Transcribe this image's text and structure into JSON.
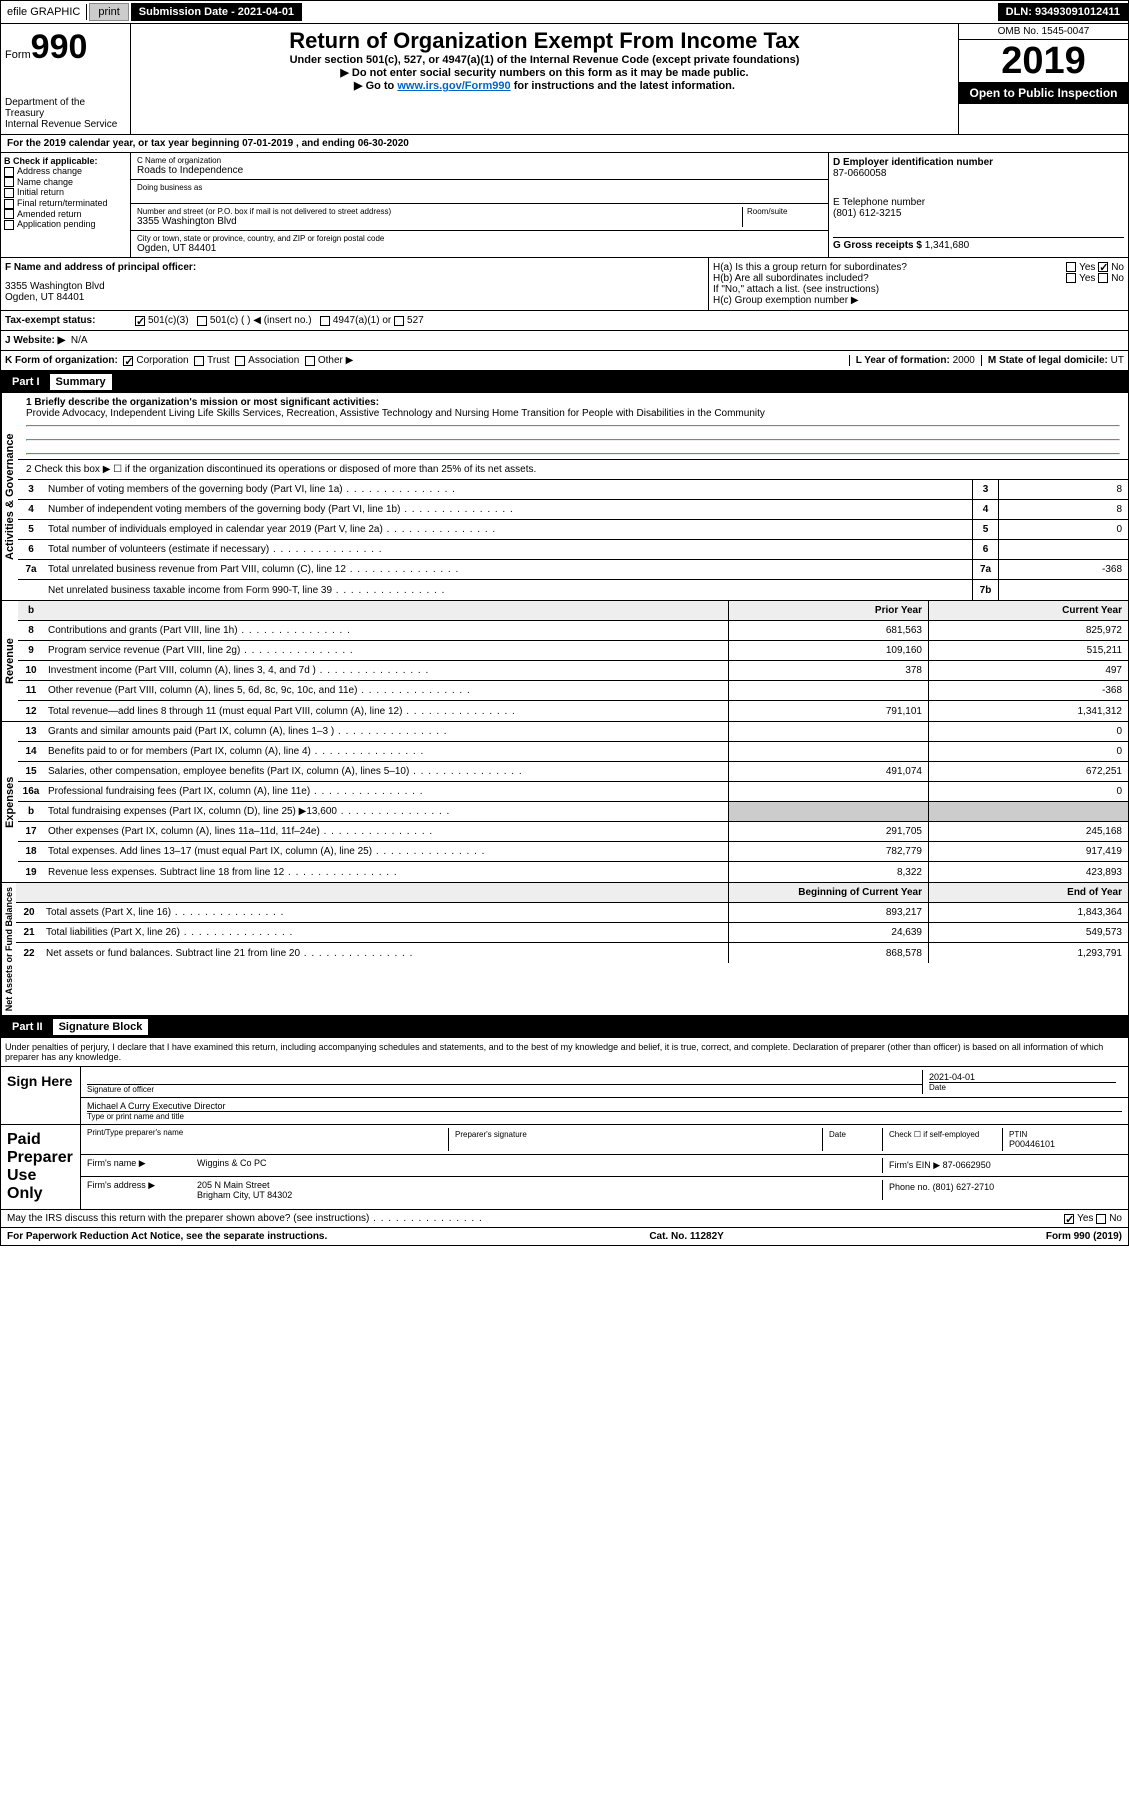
{
  "topbar": {
    "efile": "efile GRAPHIC",
    "print": "print",
    "sub_label": "Submission Date - 2021-04-01",
    "dln": "DLN: 93493091012411"
  },
  "header": {
    "form": "Form",
    "num": "990",
    "dept": "Department of the Treasury\nInternal Revenue Service",
    "title": "Return of Organization Exempt From Income Tax",
    "subtitle": "Under section 501(c), 527, or 4947(a)(1) of the Internal Revenue Code (except private foundations)",
    "note1": "▶ Do not enter social security numbers on this form as it may be made public.",
    "note2_pre": "▶ Go to ",
    "note2_link": "www.irs.gov/Form990",
    "note2_post": " for instructions and the latest information.",
    "omb": "OMB No. 1545-0047",
    "year": "2019",
    "open": "Open to Public Inspection"
  },
  "sectionA": "For the 2019 calendar year, or tax year beginning 07-01-2019    , and ending 06-30-2020",
  "sectionB": {
    "label": "B Check if applicable:",
    "items": [
      "Address change",
      "Name change",
      "Initial return",
      "Final return/terminated",
      "Amended return",
      "Application pending"
    ]
  },
  "sectionC": {
    "name_label": "C Name of organization",
    "name": "Roads to Independence",
    "dba_label": "Doing business as",
    "addr_label": "Number and street (or P.O. box if mail is not delivered to street address)",
    "room_label": "Room/suite",
    "addr": "3355 Washington Blvd",
    "city_label": "City or town, state or province, country, and ZIP or foreign postal code",
    "city": "Ogden, UT  84401"
  },
  "sectionD": {
    "label": "D Employer identification number",
    "value": "87-0660058"
  },
  "sectionE": {
    "label": "E Telephone number",
    "value": "(801) 612-3215"
  },
  "sectionG": {
    "label": "G Gross receipts $",
    "value": "1,341,680"
  },
  "sectionF": {
    "label": "F  Name and address of principal officer:",
    "addr1": "3355 Washington Blvd",
    "addr2": "Ogden, UT  84401"
  },
  "sectionH": {
    "ha": "H(a)  Is this a group return for subordinates?",
    "hb": "H(b)  Are all subordinates included?",
    "hb_note": "If \"No,\" attach a list. (see instructions)",
    "hc": "H(c)  Group exemption number ▶"
  },
  "taxI": {
    "label": "Tax-exempt status:",
    "c3": "501(c)(3)",
    "c": "501(c) (  ) ◀ (insert no.)",
    "a1": "4947(a)(1) or",
    "s527": "527"
  },
  "taxJ": {
    "label": "J   Website: ▶",
    "value": "N/A"
  },
  "taxK": {
    "label": "K Form of organization:",
    "corp": "Corporation",
    "trust": "Trust",
    "assoc": "Association",
    "other": "Other ▶"
  },
  "taxL": {
    "label": "L Year of formation:",
    "value": "2000"
  },
  "taxM": {
    "label": "M State of legal domicile:",
    "value": "UT"
  },
  "part1": {
    "num": "Part I",
    "title": "Summary"
  },
  "mission_label": "1  Briefly describe the organization's mission or most significant activities:",
  "mission": "Provide Advocacy, Independent Living Life Skills Services, Recreation, Assistive Technology and Nursing Home Transition for People with Disabilities in the Community",
  "line2": "2    Check this box ▶ ☐  if the organization discontinued its operations or disposed of more than 25% of its net assets.",
  "gov_side": "Activities & Governance",
  "rev_side": "Revenue",
  "exp_side": "Expenses",
  "net_side": "Net Assets or Fund Balances",
  "lines_gov": [
    {
      "n": "3",
      "d": "Number of voting members of the governing body (Part VI, line 1a)",
      "b": "3",
      "v": "8"
    },
    {
      "n": "4",
      "d": "Number of independent voting members of the governing body (Part VI, line 1b)",
      "b": "4",
      "v": "8"
    },
    {
      "n": "5",
      "d": "Total number of individuals employed in calendar year 2019 (Part V, line 2a)",
      "b": "5",
      "v": "0"
    },
    {
      "n": "6",
      "d": "Total number of volunteers (estimate if necessary)",
      "b": "6",
      "v": ""
    },
    {
      "n": "7a",
      "d": "Total unrelated business revenue from Part VIII, column (C), line 12",
      "b": "7a",
      "v": "-368"
    },
    {
      "n": "",
      "d": "Net unrelated business taxable income from Form 990-T, line 39",
      "b": "7b",
      "v": ""
    }
  ],
  "yearhdr": {
    "b": "b",
    "py": "Prior Year",
    "cy": "Current Year"
  },
  "lines_rev": [
    {
      "n": "8",
      "d": "Contributions and grants (Part VIII, line 1h)",
      "py": "681,563",
      "cy": "825,972"
    },
    {
      "n": "9",
      "d": "Program service revenue (Part VIII, line 2g)",
      "py": "109,160",
      "cy": "515,211"
    },
    {
      "n": "10",
      "d": "Investment income (Part VIII, column (A), lines 3, 4, and 7d )",
      "py": "378",
      "cy": "497"
    },
    {
      "n": "11",
      "d": "Other revenue (Part VIII, column (A), lines 5, 6d, 8c, 9c, 10c, and 11e)",
      "py": "",
      "cy": "-368"
    },
    {
      "n": "12",
      "d": "Total revenue—add lines 8 through 11 (must equal Part VIII, column (A), line 12)",
      "py": "791,101",
      "cy": "1,341,312"
    }
  ],
  "lines_exp": [
    {
      "n": "13",
      "d": "Grants and similar amounts paid (Part IX, column (A), lines 1–3 )",
      "py": "",
      "cy": "0"
    },
    {
      "n": "14",
      "d": "Benefits paid to or for members (Part IX, column (A), line 4)",
      "py": "",
      "cy": "0"
    },
    {
      "n": "15",
      "d": "Salaries, other compensation, employee benefits (Part IX, column (A), lines 5–10)",
      "py": "491,074",
      "cy": "672,251"
    },
    {
      "n": "16a",
      "d": "Professional fundraising fees (Part IX, column (A), line 11e)",
      "py": "",
      "cy": "0"
    },
    {
      "n": "b",
      "d": "Total fundraising expenses (Part IX, column (D), line 25) ▶13,600",
      "py": "shaded",
      "cy": "shaded"
    },
    {
      "n": "17",
      "d": "Other expenses (Part IX, column (A), lines 11a–11d, 11f–24e)",
      "py": "291,705",
      "cy": "245,168"
    },
    {
      "n": "18",
      "d": "Total expenses. Add lines 13–17 (must equal Part IX, column (A), line 25)",
      "py": "782,779",
      "cy": "917,419"
    },
    {
      "n": "19",
      "d": "Revenue less expenses. Subtract line 18 from line 12",
      "py": "8,322",
      "cy": "423,893"
    }
  ],
  "nethdr": {
    "py": "Beginning of Current Year",
    "cy": "End of Year"
  },
  "lines_net": [
    {
      "n": "20",
      "d": "Total assets (Part X, line 16)",
      "py": "893,217",
      "cy": "1,843,364"
    },
    {
      "n": "21",
      "d": "Total liabilities (Part X, line 26)",
      "py": "24,639",
      "cy": "549,573"
    },
    {
      "n": "22",
      "d": "Net assets or fund balances. Subtract line 21 from line 20",
      "py": "868,578",
      "cy": "1,293,791"
    }
  ],
  "part2": {
    "num": "Part II",
    "title": "Signature Block"
  },
  "perjury": "Under penalties of perjury, I declare that I have examined this return, including accompanying schedules and statements, and to the best of my knowledge and belief, it is true, correct, and complete. Declaration of preparer (other than officer) is based on all information of which preparer has any knowledge.",
  "sign": {
    "here": "Sign Here",
    "sig_label": "Signature of officer",
    "date": "2021-04-01",
    "date_label": "Date",
    "name": "Michael A Curry  Executive Director",
    "name_label": "Type or print name and title"
  },
  "paid": {
    "label": "Paid Preparer Use Only",
    "pn_label": "Print/Type preparer's name",
    "ps_label": "Preparer's signature",
    "d_label": "Date",
    "check_label": "Check ☐ if self-employed",
    "ptin_label": "PTIN",
    "ptin": "P00446101",
    "firm_label": "Firm's name    ▶",
    "firm": "Wiggins & Co PC",
    "ein_label": "Firm's EIN ▶",
    "ein": "87-0662950",
    "addr_label": "Firm's address ▶",
    "addr1": "205 N Main Street",
    "addr2": "Brigham City, UT  84302",
    "phone_label": "Phone no.",
    "phone": "(801) 627-2710"
  },
  "discuss": "May the IRS discuss this return with the preparer shown above? (see instructions)",
  "footer": {
    "left": "For Paperwork Reduction Act Notice, see the separate instructions.",
    "mid": "Cat. No. 11282Y",
    "right": "Form 990 (2019)"
  }
}
